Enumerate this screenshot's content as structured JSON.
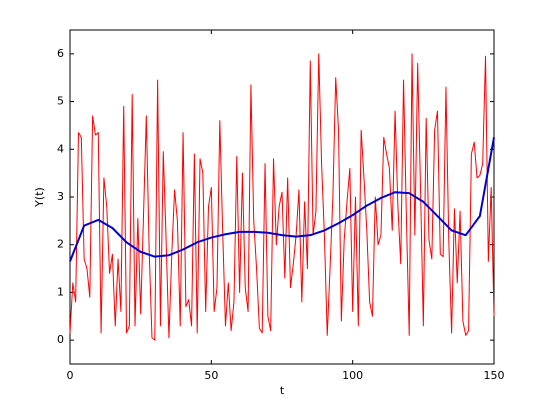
{
  "chart_data": {
    "type": "line",
    "xlabel": "t",
    "ylabel": "Y(t)",
    "xlim": [
      0,
      150
    ],
    "ylim": [
      -0.5,
      6.5
    ],
    "xticks": [
      0,
      50,
      100,
      150
    ],
    "yticks": [
      0,
      1,
      2,
      3,
      4,
      5,
      6
    ],
    "grid": false,
    "series": [
      {
        "color": "#ff0000",
        "width": 1,
        "x": [
          0,
          1,
          2,
          3,
          4,
          5,
          6,
          7,
          8,
          9,
          10,
          11,
          12,
          13,
          14,
          15,
          16,
          17,
          18,
          19,
          20,
          21,
          22,
          23,
          24,
          25,
          26,
          27,
          28,
          29,
          30,
          31,
          32,
          33,
          34,
          35,
          36,
          37,
          38,
          39,
          40,
          41,
          42,
          43,
          44,
          45,
          46,
          47,
          48,
          49,
          50,
          51,
          52,
          53,
          54,
          55,
          56,
          57,
          58,
          59,
          60,
          61,
          62,
          63,
          64,
          65,
          66,
          67,
          68,
          69,
          70,
          71,
          72,
          73,
          74,
          75,
          76,
          77,
          78,
          79,
          80,
          81,
          82,
          83,
          84,
          85,
          86,
          87,
          88,
          89,
          90,
          91,
          92,
          93,
          94,
          95,
          96,
          97,
          98,
          99,
          100,
          101,
          102,
          103,
          104,
          105,
          106,
          107,
          108,
          109,
          110,
          111,
          112,
          113,
          114,
          115,
          116,
          117,
          118,
          119,
          120,
          121,
          122,
          123,
          124,
          125,
          126,
          127,
          128,
          129,
          130,
          131,
          132,
          133,
          134,
          135,
          136,
          137,
          138,
          139,
          140,
          141,
          142,
          143,
          144,
          145,
          146,
          147,
          148,
          149,
          150
        ],
        "values": [
          0.15,
          1.2,
          0.8,
          4.35,
          4.25,
          1.7,
          1.5,
          0.9,
          4.7,
          4.3,
          4.35,
          0.15,
          3.4,
          2.8,
          1.4,
          1.8,
          0.3,
          1.7,
          0.6,
          4.9,
          0.15,
          0.3,
          5.15,
          0.3,
          2.55,
          0.55,
          2.6,
          4.7,
          1.9,
          0.05,
          0.0,
          5.45,
          0.3,
          3.95,
          2.1,
          0.05,
          1.8,
          3.15,
          2.5,
          0.3,
          4.35,
          0.7,
          0.85,
          0.3,
          3.9,
          0.15,
          3.8,
          3.5,
          0.6,
          2.8,
          3.2,
          0.6,
          1.1,
          4.6,
          2.3,
          0.3,
          1.2,
          0.2,
          0.8,
          3.85,
          1.0,
          3.5,
          1.1,
          0.6,
          5.35,
          2.5,
          1.5,
          0.25,
          0.15,
          3.7,
          0.5,
          0.2,
          3.8,
          2.0,
          2.8,
          3.1,
          1.3,
          3.4,
          1.1,
          1.6,
          2.2,
          3.15,
          0.8,
          2.9,
          1.5,
          5.85,
          2.2,
          2.7,
          6.0,
          3.7,
          2.2,
          0.1,
          1.5,
          3.0,
          5.5,
          4.4,
          0.4,
          2.1,
          2.9,
          3.6,
          0.6,
          3.0,
          0.3,
          4.4,
          3.4,
          2.3,
          0.8,
          0.5,
          3.0,
          2.0,
          2.2,
          4.25,
          3.9,
          3.6,
          2.3,
          4.8,
          2.8,
          1.6,
          5.45,
          2.6,
          0.1,
          6.0,
          2.2,
          5.8,
          3.2,
          0.3,
          4.65,
          2.1,
          1.7,
          4.4,
          4.8,
          1.8,
          1.75,
          5.3,
          2.1,
          0.15,
          2.75,
          1.2,
          2.7,
          0.4,
          0.1,
          0.2,
          3.9,
          4.15,
          3.4,
          3.45,
          3.7,
          5.95,
          1.65,
          3.2,
          0.5
        ]
      },
      {
        "color": "#0000cc",
        "width": 2,
        "x": [
          0,
          5,
          10,
          15,
          20,
          25,
          30,
          35,
          40,
          45,
          50,
          55,
          60,
          65,
          70,
          75,
          80,
          85,
          90,
          95,
          100,
          105,
          110,
          115,
          120,
          125,
          130,
          135,
          140,
          145,
          150
        ],
        "values": [
          1.65,
          2.4,
          2.52,
          2.35,
          2.05,
          1.85,
          1.75,
          1.78,
          1.9,
          2.05,
          2.15,
          2.22,
          2.27,
          2.27,
          2.25,
          2.2,
          2.17,
          2.2,
          2.3,
          2.45,
          2.62,
          2.82,
          2.98,
          3.1,
          3.08,
          2.9,
          2.6,
          2.3,
          2.2,
          2.6,
          4.25
        ]
      }
    ]
  }
}
